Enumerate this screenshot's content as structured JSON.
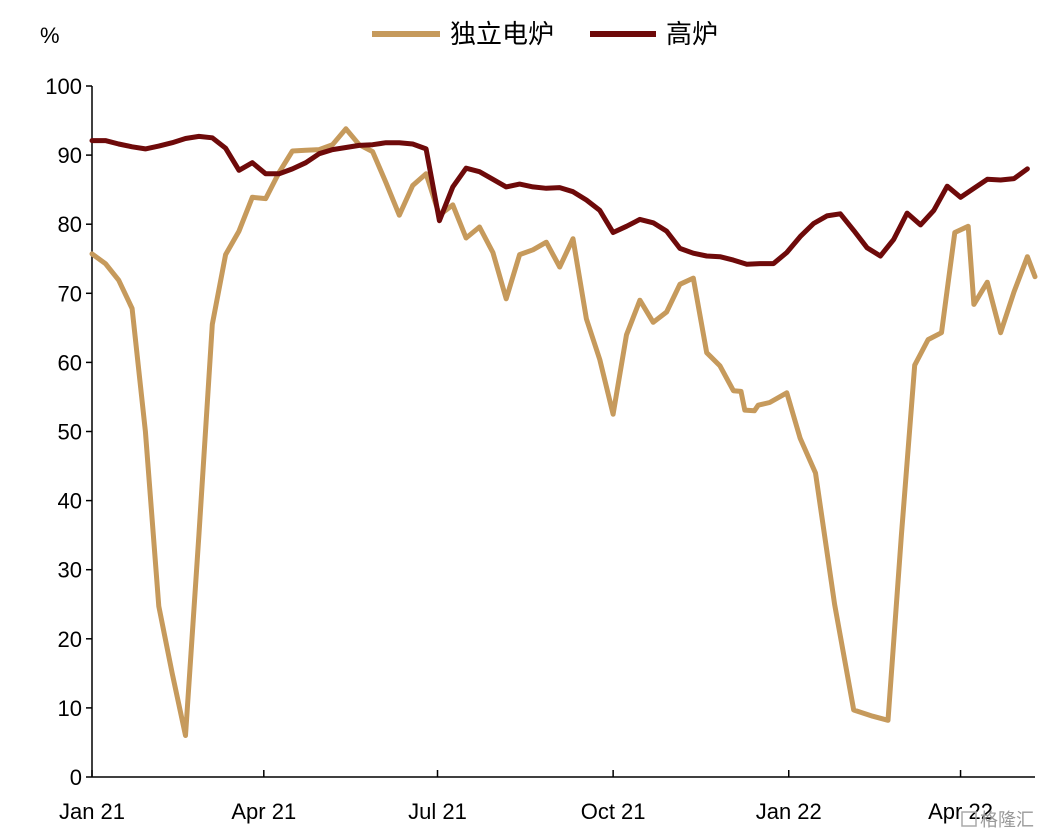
{
  "chart_data": {
    "type": "line",
    "unit_label": "%",
    "ylim": [
      0,
      100
    ],
    "yticks": [
      0,
      10,
      20,
      30,
      40,
      50,
      60,
      70,
      80,
      90,
      100
    ],
    "xlim": [
      "2021-01-01",
      "2022-05-10"
    ],
    "xticks": [
      {
        "date": "2021-01-01",
        "label": "Jan 21"
      },
      {
        "date": "2021-04-01",
        "label": "Apr 21"
      },
      {
        "date": "2021-07-01",
        "label": "Jul 21"
      },
      {
        "date": "2021-10-01",
        "label": "Oct 21"
      },
      {
        "date": "2022-01-01",
        "label": "Jan 22"
      },
      {
        "date": "2022-04-01",
        "label": "Apr 22"
      }
    ],
    "legend_position": "top",
    "grid": false,
    "series": [
      {
        "name": "独立电炉",
        "color": "#c69a5c",
        "points": [
          [
            "2021-01-01",
            75.7
          ],
          [
            "2021-01-08",
            74.3
          ],
          [
            "2021-01-15",
            71.9
          ],
          [
            "2021-01-22",
            67.8
          ],
          [
            "2021-01-29",
            50.0
          ],
          [
            "2021-02-05",
            24.7
          ],
          [
            "2021-02-12",
            15.0
          ],
          [
            "2021-02-19",
            6.0
          ],
          [
            "2021-02-26",
            35.0
          ],
          [
            "2021-03-05",
            65.5
          ],
          [
            "2021-03-12",
            75.6
          ],
          [
            "2021-03-19",
            79.0
          ],
          [
            "2021-03-26",
            83.9
          ],
          [
            "2021-04-02",
            83.7
          ],
          [
            "2021-04-09",
            87.5
          ],
          [
            "2021-04-16",
            90.6
          ],
          [
            "2021-04-23",
            90.7
          ],
          [
            "2021-04-30",
            90.8
          ],
          [
            "2021-05-07",
            91.5
          ],
          [
            "2021-05-14",
            93.8
          ],
          [
            "2021-05-21",
            91.5
          ],
          [
            "2021-05-28",
            90.5
          ],
          [
            "2021-06-04",
            86.0
          ],
          [
            "2021-06-11",
            81.3
          ],
          [
            "2021-06-18",
            85.6
          ],
          [
            "2021-06-25",
            87.3
          ],
          [
            "2021-07-02",
            81.3
          ],
          [
            "2021-07-09",
            82.8
          ],
          [
            "2021-07-16",
            78.0
          ],
          [
            "2021-07-23",
            79.6
          ],
          [
            "2021-07-30",
            75.9
          ],
          [
            "2021-08-06",
            69.2
          ],
          [
            "2021-08-13",
            75.6
          ],
          [
            "2021-08-20",
            76.3
          ],
          [
            "2021-08-27",
            77.4
          ],
          [
            "2021-09-03",
            73.8
          ],
          [
            "2021-09-10",
            77.9
          ],
          [
            "2021-09-17",
            66.3
          ],
          [
            "2021-09-24",
            60.4
          ],
          [
            "2021-10-01",
            52.5
          ],
          [
            "2021-10-08",
            64.0
          ],
          [
            "2021-10-15",
            69.0
          ],
          [
            "2021-10-22",
            65.8
          ],
          [
            "2021-10-29",
            67.3
          ],
          [
            "2021-11-05",
            71.3
          ],
          [
            "2021-11-12",
            72.2
          ],
          [
            "2021-11-19",
            61.4
          ],
          [
            "2021-11-26",
            59.5
          ],
          [
            "2021-12-03",
            55.9
          ],
          [
            "2021-12-07",
            55.8
          ],
          [
            "2021-12-09",
            53.1
          ],
          [
            "2021-12-14",
            53.0
          ],
          [
            "2021-12-16",
            53.8
          ],
          [
            "2021-12-22",
            54.2
          ],
          [
            "2021-12-31",
            55.6
          ],
          [
            "2022-01-07",
            49.0
          ],
          [
            "2022-01-15",
            44.0
          ],
          [
            "2022-01-25",
            25.0
          ],
          [
            "2022-02-04",
            9.7
          ],
          [
            "2022-02-14",
            8.8
          ],
          [
            "2022-02-22",
            8.2
          ],
          [
            "2022-03-01",
            35.0
          ],
          [
            "2022-03-08",
            59.6
          ],
          [
            "2022-03-15",
            63.3
          ],
          [
            "2022-03-22",
            64.3
          ],
          [
            "2022-03-29",
            78.8
          ],
          [
            "2022-04-05",
            79.7
          ],
          [
            "2022-04-08",
            68.4
          ],
          [
            "2022-04-15",
            71.6
          ],
          [
            "2022-04-22",
            64.3
          ],
          [
            "2022-04-29",
            70.2
          ],
          [
            "2022-05-06",
            75.3
          ],
          [
            "2022-05-10",
            72.4
          ]
        ]
      },
      {
        "name": "高炉",
        "color": "#6e0a0a",
        "points": [
          [
            "2021-01-01",
            92.1
          ],
          [
            "2021-01-08",
            92.1
          ],
          [
            "2021-01-15",
            91.6
          ],
          [
            "2021-01-22",
            91.2
          ],
          [
            "2021-01-29",
            90.9
          ],
          [
            "2021-02-05",
            91.3
          ],
          [
            "2021-02-12",
            91.8
          ],
          [
            "2021-02-19",
            92.4
          ],
          [
            "2021-02-26",
            92.7
          ],
          [
            "2021-03-05",
            92.5
          ],
          [
            "2021-03-12",
            91.0
          ],
          [
            "2021-03-19",
            87.8
          ],
          [
            "2021-03-26",
            88.9
          ],
          [
            "2021-04-02",
            87.3
          ],
          [
            "2021-04-09",
            87.3
          ],
          [
            "2021-04-16",
            88.0
          ],
          [
            "2021-04-23",
            88.9
          ],
          [
            "2021-04-30",
            90.2
          ],
          [
            "2021-05-07",
            90.8
          ],
          [
            "2021-05-14",
            91.1
          ],
          [
            "2021-05-21",
            91.4
          ],
          [
            "2021-05-28",
            91.5
          ],
          [
            "2021-06-04",
            91.8
          ],
          [
            "2021-06-11",
            91.8
          ],
          [
            "2021-06-18",
            91.6
          ],
          [
            "2021-06-25",
            90.9
          ],
          [
            "2021-07-02",
            80.5
          ],
          [
            "2021-07-09",
            85.4
          ],
          [
            "2021-07-16",
            88.1
          ],
          [
            "2021-07-23",
            87.6
          ],
          [
            "2021-07-30",
            86.5
          ],
          [
            "2021-08-06",
            85.4
          ],
          [
            "2021-08-13",
            85.8
          ],
          [
            "2021-08-20",
            85.4
          ],
          [
            "2021-08-27",
            85.2
          ],
          [
            "2021-09-03",
            85.3
          ],
          [
            "2021-09-10",
            84.7
          ],
          [
            "2021-09-17",
            83.5
          ],
          [
            "2021-09-24",
            82.0
          ],
          [
            "2021-10-01",
            78.8
          ],
          [
            "2021-10-08",
            79.7
          ],
          [
            "2021-10-15",
            80.7
          ],
          [
            "2021-10-22",
            80.2
          ],
          [
            "2021-10-29",
            79.0
          ],
          [
            "2021-11-05",
            76.5
          ],
          [
            "2021-11-12",
            75.8
          ],
          [
            "2021-11-19",
            75.4
          ],
          [
            "2021-11-26",
            75.3
          ],
          [
            "2021-12-03",
            74.8
          ],
          [
            "2021-12-10",
            74.2
          ],
          [
            "2021-12-17",
            74.3
          ],
          [
            "2021-12-24",
            74.3
          ],
          [
            "2021-12-31",
            75.9
          ],
          [
            "2022-01-07",
            78.2
          ],
          [
            "2022-01-14",
            80.1
          ],
          [
            "2022-01-21",
            81.2
          ],
          [
            "2022-01-28",
            81.5
          ],
          [
            "2022-02-04",
            79.1
          ],
          [
            "2022-02-11",
            76.6
          ],
          [
            "2022-02-18",
            75.4
          ],
          [
            "2022-02-25",
            77.8
          ],
          [
            "2022-03-04",
            81.6
          ],
          [
            "2022-03-11",
            79.9
          ],
          [
            "2022-03-18",
            82.0
          ],
          [
            "2022-03-25",
            85.5
          ],
          [
            "2022-04-01",
            83.9
          ],
          [
            "2022-04-08",
            85.2
          ],
          [
            "2022-04-15",
            86.5
          ],
          [
            "2022-04-22",
            86.4
          ],
          [
            "2022-04-29",
            86.6
          ],
          [
            "2022-05-06",
            88.0
          ]
        ]
      }
    ]
  },
  "watermark": {
    "text": "格隆汇"
  }
}
